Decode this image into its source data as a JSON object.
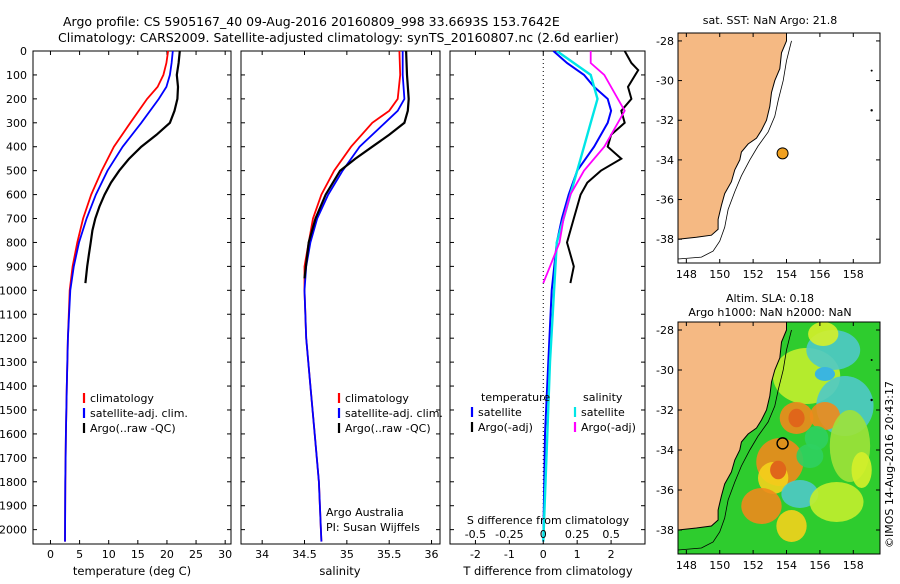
{
  "header": {
    "line1": "Argo profile: CS 5905167_40 09-Aug-2016 20160809_998 33.6693S 153.7642E",
    "line2": "Climatology: CARS2009. Satellite-adjusted climatology: synTS_20160807.nc (2.6d earlier)"
  },
  "colors": {
    "climatology": "#ff0000",
    "satellite": "#0000ff",
    "argo": "#000000",
    "salinity_satellite": "#00e6e6",
    "salinity_argo": "#ff00ff",
    "land": "#f5b983",
    "ocean_map": "#ffffff"
  },
  "depth_axis": {
    "ticks": [
      "0",
      "100",
      "200",
      "300",
      "400",
      "500",
      "600",
      "700",
      "800",
      "900",
      "1000",
      "1100",
      "1200",
      "1300",
      "1400",
      "1500",
      "1600",
      "1700",
      "1800",
      "1900",
      "2000"
    ],
    "range": [
      0,
      2060
    ]
  },
  "panels": {
    "temperature": {
      "xlabel": "temperature (deg C)",
      "xticks": [
        "0",
        "5",
        "10",
        "15",
        "20",
        "25",
        "30"
      ],
      "legend": [
        "climatology",
        "satellite-adj. clim.",
        "Argo(..raw -QC)"
      ]
    },
    "salinity": {
      "xlabel": "salinity",
      "xticks": [
        "34",
        "34.5",
        "35",
        "35.5",
        "36"
      ],
      "legend": [
        "climatology",
        "satellite-adj. clim.",
        "Argo(..raw -QC)"
      ],
      "credit1": "Argo Australia",
      "credit2": "PI: Susan Wijffels"
    },
    "difference": {
      "xlabel": "T difference from climatology",
      "s_label": "S difference from climatology",
      "s_ticks": [
        "-0.5",
        "-0.25",
        "0",
        "0.25",
        "0.5"
      ],
      "t_ticks": [
        "-2",
        "-1",
        "0",
        "1",
        "2"
      ],
      "legend_temp_title": "temperature",
      "legend_sal_title": "salinity",
      "legend_temp": [
        "satellite",
        "Argo(-adj)"
      ],
      "legend_sal": [
        "satellite",
        "Argo(-adj)"
      ]
    }
  },
  "maps": {
    "sst_title": "sat. SST: NaN Argo: 21.8",
    "sla_title1": "Altim. SLA: 0.18",
    "sla_title2": "Argo h1000: NaN h2000: NaN",
    "lat_ticks": [
      "-28",
      "-30",
      "-32",
      "-34",
      "-36",
      "-38"
    ],
    "lon_ticks": [
      "148",
      "150",
      "152",
      "154",
      "156",
      "158"
    ],
    "argo_position": {
      "lon": 153.7642,
      "lat": -33.6693
    }
  },
  "footer": {
    "credit": "©IMOS 14-Aug-2016 20:43:17"
  },
  "chart_data": [
    {
      "type": "line",
      "title": "",
      "xlabel": "temperature (deg C)",
      "ylabel": "",
      "xlim": [
        -3,
        31
      ],
      "ylim": [
        2060,
        0
      ],
      "series": [
        {
          "name": "climatology",
          "x": [
            20.2,
            19.9,
            19.4,
            18.4,
            16.6,
            13.7,
            10.9,
            8.8,
            7.0,
            5.6,
            4.6,
            3.8,
            3.3,
            3.0,
            2.8,
            2.65,
            2.55,
            2.5
          ],
          "y": [
            0,
            50,
            100,
            150,
            200,
            300,
            400,
            500,
            600,
            700,
            800,
            900,
            1000,
            1200,
            1400,
            1600,
            1800,
            2050
          ]
        },
        {
          "name": "satellite-adj. clim.",
          "x": [
            21.0,
            20.8,
            20.5,
            19.9,
            18.6,
            15.6,
            12.4,
            9.8,
            7.8,
            6.2,
            4.9,
            4.0,
            3.4,
            3.0,
            2.8,
            2.65,
            2.55,
            2.5
          ],
          "y": [
            0,
            50,
            100,
            150,
            200,
            300,
            400,
            500,
            600,
            700,
            800,
            900,
            1000,
            1200,
            1400,
            1600,
            1800,
            2050
          ]
        },
        {
          "name": "Argo(..raw -QC)",
          "x": [
            22.2,
            22.0,
            21.7,
            21.9,
            21.8,
            21.3,
            20.5,
            18.2,
            15.6,
            13.5,
            11.8,
            10.4,
            9.3,
            8.4,
            7.7,
            7.2,
            6.9,
            6.6,
            6.3,
            6.0
          ],
          "y": [
            0,
            50,
            100,
            150,
            200,
            250,
            300,
            350,
            400,
            450,
            500,
            550,
            600,
            650,
            700,
            750,
            800,
            850,
            900,
            970
          ]
        }
      ]
    },
    {
      "type": "line",
      "title": "",
      "xlabel": "salinity",
      "ylabel": "",
      "xlim": [
        33.75,
        36.1
      ],
      "ylim": [
        2060,
        0
      ],
      "series": [
        {
          "name": "climatology",
          "x": [
            35.62,
            35.63,
            35.6,
            35.5,
            35.3,
            35.05,
            34.85,
            34.7,
            34.6,
            34.55,
            34.5,
            34.5,
            34.52,
            34.57,
            34.62,
            34.67,
            34.7
          ],
          "y": [
            0,
            100,
            200,
            250,
            300,
            400,
            500,
            600,
            700,
            800,
            900,
            1000,
            1200,
            1400,
            1600,
            1800,
            2050
          ]
        },
        {
          "name": "satellite-adj. clim.",
          "x": [
            35.66,
            35.66,
            35.68,
            35.6,
            35.45,
            35.15,
            34.95,
            34.78,
            34.65,
            34.57,
            34.52,
            34.5,
            34.52,
            34.57,
            34.62,
            34.67,
            34.7
          ],
          "y": [
            0,
            100,
            200,
            250,
            300,
            400,
            500,
            600,
            700,
            800,
            900,
            1000,
            1200,
            1400,
            1600,
            1800,
            2050
          ]
        },
        {
          "name": "Argo(..raw -QC)",
          "x": [
            35.7,
            35.71,
            35.73,
            35.72,
            35.68,
            35.5,
            35.3,
            35.1,
            34.92,
            34.75,
            34.63,
            34.55,
            34.5
          ],
          "y": [
            0,
            100,
            200,
            250,
            300,
            350,
            400,
            450,
            500,
            600,
            700,
            800,
            950
          ]
        }
      ]
    },
    {
      "type": "line",
      "title": "",
      "xlabel": "T difference from climatology",
      "ylabel": "",
      "xlim": [
        -2.75,
        3.0
      ],
      "ylim": [
        2060,
        0
      ],
      "series": [
        {
          "name": "temperature satellite",
          "x": [
            0.3,
            0.7,
            1.2,
            1.5,
            1.9,
            2.0,
            1.9,
            1.5,
            1.0,
            0.75,
            0.55,
            0.4,
            0.25,
            0.15,
            0.05,
            0.0
          ],
          "y": [
            0,
            50,
            100,
            150,
            200,
            250,
            300,
            400,
            500,
            600,
            700,
            800,
            1000,
            1300,
            1600,
            2050
          ]
        },
        {
          "name": "temperature Argo(-adj)",
          "x": [
            2.4,
            2.6,
            2.8,
            2.5,
            2.6,
            2.3,
            2.4,
            2.0,
            1.9,
            2.3,
            1.7,
            1.3,
            1.1,
            1.0,
            0.9,
            0.7,
            0.9,
            0.8
          ],
          "y": [
            0,
            50,
            80,
            150,
            200,
            250,
            300,
            350,
            400,
            450,
            500,
            550,
            600,
            650,
            700,
            800,
            900,
            970
          ]
        },
        {
          "name": "salinity satellite",
          "x": [
            0.1,
            0.35,
            0.4,
            0.35,
            0.3,
            0.25,
            0.2,
            0.1,
            0.05,
            0.0
          ],
          "y": [
            0,
            100,
            200,
            300,
            400,
            500,
            600,
            800,
            1300,
            2050
          ]
        },
        {
          "name": "salinity Argo(-adj)",
          "x": [
            0.35,
            0.35,
            0.45,
            0.5,
            0.55,
            0.6,
            0.55,
            0.5,
            0.45,
            0.3,
            0.2,
            0.15,
            0.12,
            0.05,
            0.0
          ],
          "y": [
            0,
            50,
            100,
            150,
            200,
            250,
            300,
            350,
            400,
            500,
            600,
            700,
            800,
            900,
            970
          ]
        }
      ]
    }
  ]
}
